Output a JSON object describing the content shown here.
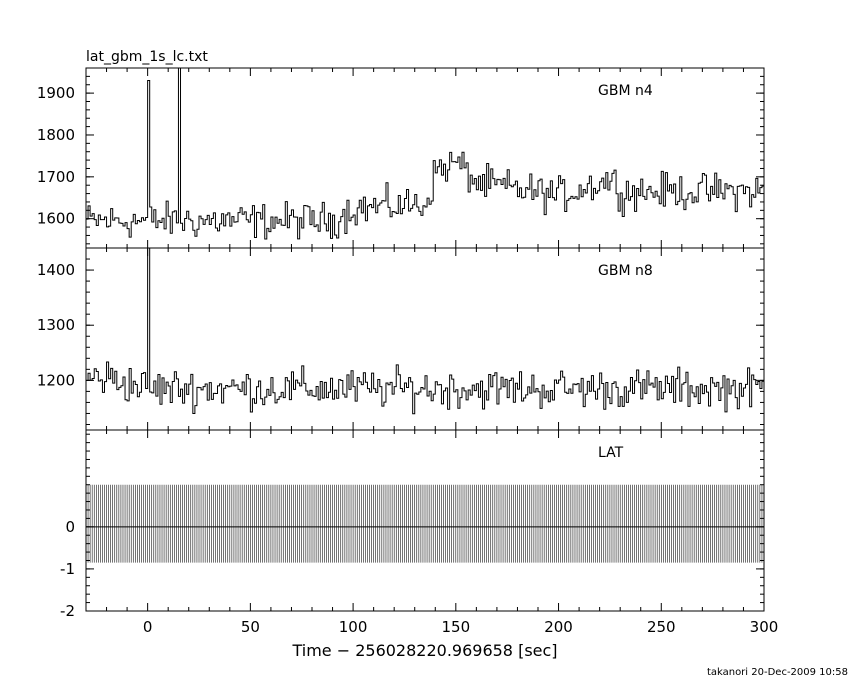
{
  "header": {
    "filename": "lat_gbm_1s_lc.txt"
  },
  "footer": {
    "credit": "takanori 20-Dec-2009 10:58"
  },
  "chart_data": {
    "type": "line",
    "xlabel": "Time − 256028220.969658 [sec]",
    "x_range": [
      -30,
      300
    ],
    "x_ticks": [
      0,
      50,
      100,
      150,
      200,
      250,
      300
    ],
    "panels": [
      {
        "label": "GBM n4",
        "y_range": [
          1530,
          1960
        ],
        "y_ticks": [
          1600,
          1700,
          1800,
          1900
        ],
        "baseline": 1595,
        "noise": 30,
        "trend": [
          [
            -30,
            0
          ],
          [
            90,
            0
          ],
          [
            100,
            30
          ],
          [
            135,
            40
          ],
          [
            140,
            120
          ],
          [
            150,
            140
          ],
          [
            160,
            90
          ],
          [
            200,
            60
          ],
          [
            225,
            100
          ],
          [
            230,
            70
          ],
          [
            300,
            70
          ]
        ],
        "spikes": [
          [
            0,
            1930
          ],
          [
            15,
            1960
          ]
        ]
      },
      {
        "label": "GBM n8",
        "y_range": [
          1110,
          1440
        ],
        "y_ticks": [
          1200,
          1300,
          1400
        ],
        "baseline": 1185,
        "noise": 25,
        "trend": [
          [
            -30,
            20
          ],
          [
            -20,
            20
          ],
          [
            0,
            0
          ],
          [
            300,
            0
          ]
        ],
        "spikes": [
          [
            0,
            1440
          ]
        ]
      },
      {
        "label": "LAT",
        "y_range": [
          -2,
          2.3
        ],
        "y_ticks": [
          -2,
          -1,
          0
        ],
        "hash_band": [
          -0.85,
          1.0
        ]
      }
    ]
  }
}
